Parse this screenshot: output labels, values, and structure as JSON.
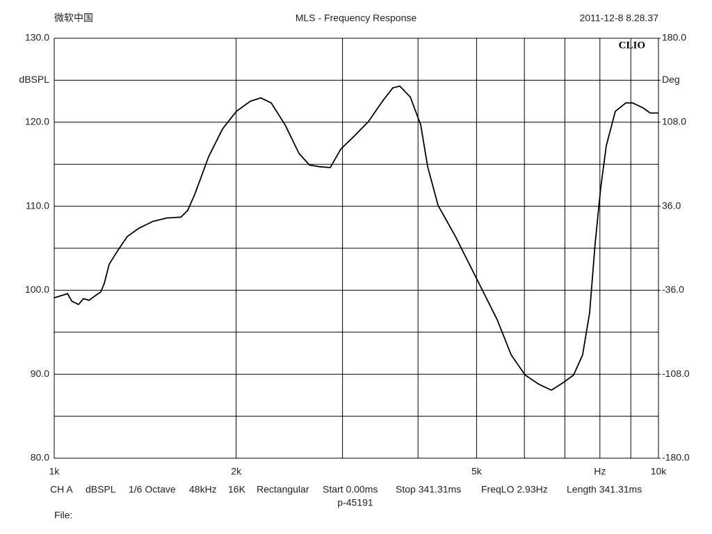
{
  "chart_data": {
    "type": "line",
    "header_left": "微软中国",
    "title": "MLS - Frequency Response",
    "timestamp": "2011-12-8 8.28.37",
    "brand": "CLIO",
    "xscale": "log",
    "xlim": [
      1000,
      10000
    ],
    "xticks": [
      {
        "value": 1000,
        "label": "1k"
      },
      {
        "value": 2000,
        "label": "2k"
      },
      {
        "value": 5000,
        "label": "5k"
      },
      {
        "value": 8000,
        "label": "Hz"
      },
      {
        "value": 10000,
        "label": "10k"
      }
    ],
    "x_gridlines": [
      3000,
      4000,
      6000,
      7000,
      9000
    ],
    "ylim": [
      80,
      130
    ],
    "yticks": [
      {
        "value": 130,
        "label": "130.0"
      },
      {
        "value": 125,
        "label": "dBSPL"
      },
      {
        "value": 120,
        "label": "120.0"
      },
      {
        "value": 110,
        "label": "110.0"
      },
      {
        "value": 100,
        "label": "100.0"
      },
      {
        "value": 90,
        "label": "90.0"
      },
      {
        "value": 80,
        "label": "80.0"
      }
    ],
    "y_gridlines": [
      115,
      105,
      95,
      85
    ],
    "y2lim": [
      -180,
      180
    ],
    "y2ticks": [
      {
        "value": 180,
        "label": "180.0"
      },
      {
        "value": 144,
        "label": "Deg"
      },
      {
        "value": 108,
        "label": "108.0"
      },
      {
        "value": 36,
        "label": "36.0"
      },
      {
        "value": -36,
        "label": "-36.0"
      },
      {
        "value": -108,
        "label": "-108.0"
      },
      {
        "value": -180,
        "label": "-180.0"
      }
    ],
    "grid": true,
    "x": [
      1000,
      1032,
      1052,
      1069,
      1097,
      1118,
      1142,
      1172,
      1194,
      1210,
      1233,
      1276,
      1321,
      1382,
      1457,
      1536,
      1620,
      1663,
      1708,
      1801,
      1899,
      2002,
      2111,
      2197,
      2286,
      2410,
      2541,
      2645,
      2752,
      2863,
      2980,
      3142,
      3313,
      3493,
      3635,
      3732,
      3884,
      4041,
      4150,
      4318,
      4613,
      4864,
      5129,
      5408,
      5705,
      6016,
      6343,
      6650,
      6956,
      7236,
      7490,
      7692,
      7857,
      8025,
      8197,
      8484,
      8830,
      9067,
      9434,
      9688,
      10000
    ],
    "series": [
      {
        "color": "#000000",
        "values": [
          99.1,
          99.4,
          99.6,
          98.7,
          98.3,
          99.0,
          98.8,
          99.4,
          99.8,
          100.8,
          103.1,
          104.8,
          106.4,
          107.4,
          108.2,
          108.6,
          108.7,
          109.5,
          111.4,
          115.9,
          119.2,
          121.3,
          122.5,
          122.9,
          122.3,
          119.7,
          116.3,
          114.9,
          114.7,
          114.6,
          116.8,
          118.4,
          120.1,
          122.5,
          124.1,
          124.3,
          123.0,
          119.7,
          114.7,
          110.1,
          106.4,
          103.1,
          99.8,
          96.5,
          92.3,
          89.9,
          88.8,
          88.1,
          89.0,
          89.9,
          92.3,
          97.3,
          105.6,
          112.2,
          117.2,
          121.3,
          122.3,
          122.3,
          121.7,
          121.1,
          121.1
        ]
      }
    ],
    "footer": [
      "CH A",
      "dBSPL",
      "1/6 Octave",
      "48kHz",
      "16K",
      "Rectangular",
      "Start 0.00ms",
      "Stop 341.31ms",
      "FreqLO 2.93Hz",
      "Length 341.31ms"
    ],
    "footer_id": "p-45191",
    "file_label": "File:"
  }
}
